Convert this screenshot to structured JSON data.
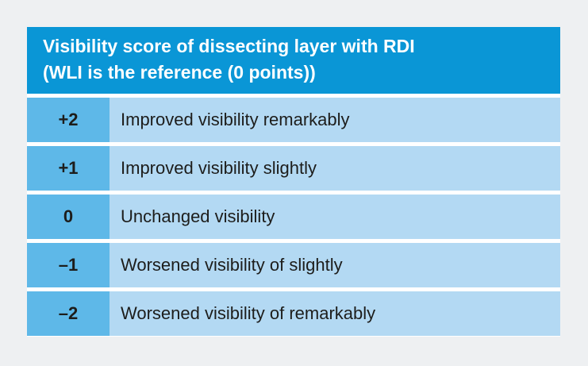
{
  "table": {
    "header": {
      "line1": "Visibility score of dissecting layer with RDI",
      "line2": "(WLI is the reference (0 points))"
    },
    "rows": [
      {
        "score": "+2",
        "description": "Improved visibility remarkably"
      },
      {
        "score": "+1",
        "description": "Improved visibility slightly"
      },
      {
        "score": "0",
        "description": "Unchanged visibility"
      },
      {
        "score": "–1",
        "description": "Worsened visibility of slightly"
      },
      {
        "score": "–2",
        "description": "Worsened visibility of remarkably"
      }
    ]
  },
  "colors": {
    "header_background": "#0a96d6",
    "header_text": "#ffffff",
    "score_cell": "#5eb8e8",
    "description_cell": "#b3d9f3",
    "body_text": "#1d1d1b"
  }
}
